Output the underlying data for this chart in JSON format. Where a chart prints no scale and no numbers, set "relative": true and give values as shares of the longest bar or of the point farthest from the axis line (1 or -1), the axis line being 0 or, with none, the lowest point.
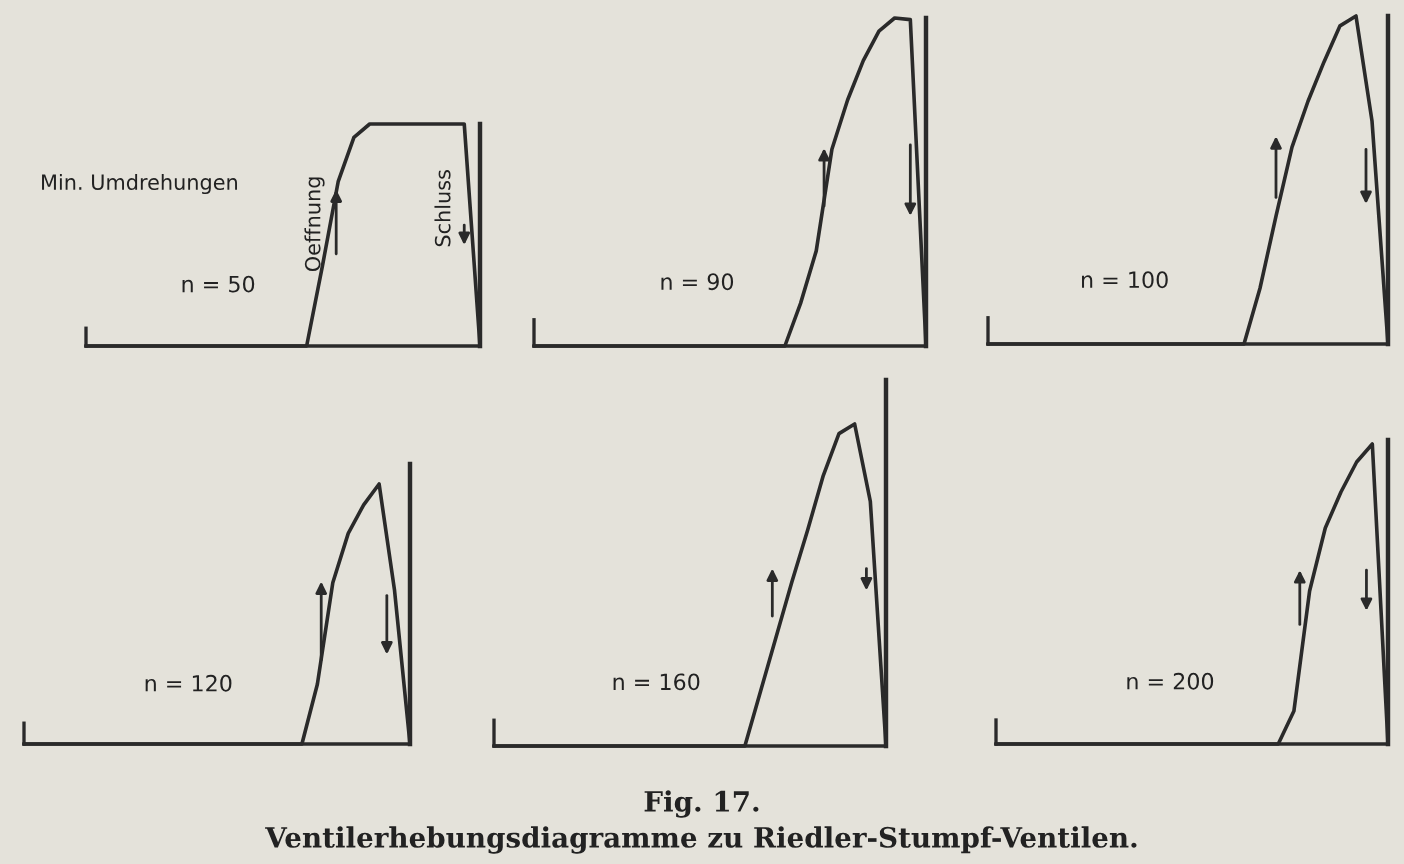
{
  "chart_data": [
    {
      "type": "line",
      "relative": true,
      "title": "n = 50",
      "categories": [
        null,
        null,
        null,
        null,
        null,
        null,
        null,
        null,
        null,
        null,
        null,
        null,
        null,
        null,
        null,
        null,
        null,
        null,
        null,
        null,
        null,
        null,
        null,
        null,
        null,
        null
      ],
      "series": [
        {
          "color": "#2a2a2a",
          "values": [
            0,
            0,
            0,
            0,
            0,
            0,
            0,
            0,
            0,
            0,
            0,
            0,
            0,
            0,
            0,
            0.36,
            0.74,
            0.94,
            1,
            1,
            1,
            1,
            1,
            1,
            1,
            0
          ]
        }
      ],
      "annotations": [
        "Min. Umdrehungen",
        "Oeffnung",
        "Schluss",
        "Fig. 17.",
        "Ventilerhebungsdiagramme zu Riedler-Stumpf-Ventilen."
      ]
    },
    {
      "type": "line",
      "relative": true,
      "title": "n = 90",
      "categories": [
        null,
        null,
        null,
        null,
        null,
        null,
        null,
        null,
        null,
        null,
        null,
        null,
        null,
        null,
        null,
        null,
        null,
        null,
        null,
        null,
        null,
        null,
        null,
        null,
        null,
        null
      ],
      "series": [
        {
          "color": "#2a2a2a",
          "values": [
            0,
            0,
            0,
            0,
            0,
            0,
            0,
            0,
            0,
            0,
            0,
            0,
            0,
            0,
            0,
            0,
            0,
            0.13,
            0.29,
            0.6,
            0.75,
            0.87,
            0.96,
            1,
            0.995,
            0
          ]
        }
      ]
    },
    {
      "type": "line",
      "relative": true,
      "title": "n = 100",
      "categories": [
        null,
        null,
        null,
        null,
        null,
        null,
        null,
        null,
        null,
        null,
        null,
        null,
        null,
        null,
        null,
        null,
        null,
        null,
        null,
        null,
        null,
        null,
        null,
        null,
        null,
        null
      ],
      "series": [
        {
          "color": "#2a2a2a",
          "values": [
            0,
            0,
            0,
            0,
            0,
            0,
            0,
            0,
            0,
            0,
            0,
            0,
            0,
            0,
            0,
            0,
            0,
            0.17,
            0.39,
            0.6,
            0.74,
            0.86,
            0.97,
            1,
            0.68,
            0
          ]
        }
      ]
    },
    {
      "type": "line",
      "relative": true,
      "title": "n = 120",
      "categories": [
        null,
        null,
        null,
        null,
        null,
        null,
        null,
        null,
        null,
        null,
        null,
        null,
        null,
        null,
        null,
        null,
        null,
        null,
        null,
        null,
        null,
        null,
        null,
        null,
        null,
        null
      ],
      "series": [
        {
          "color": "#2a2a2a",
          "values": [
            0,
            0,
            0,
            0,
            0,
            0,
            0,
            0,
            0,
            0,
            0,
            0,
            0,
            0,
            0,
            0,
            0,
            0,
            0,
            0.23,
            0.62,
            0.81,
            0.92,
            1,
            0.59,
            0
          ]
        }
      ]
    },
    {
      "type": "line",
      "relative": true,
      "title": "n = 160",
      "categories": [
        null,
        null,
        null,
        null,
        null,
        null,
        null,
        null,
        null,
        null,
        null,
        null,
        null,
        null,
        null,
        null,
        null,
        null,
        null,
        null,
        null,
        null,
        null,
        null,
        null,
        null
      ],
      "series": [
        {
          "color": "#2a2a2a",
          "values": [
            0,
            0,
            0,
            0,
            0,
            0,
            0,
            0,
            0,
            0,
            0,
            0,
            0,
            0,
            0,
            0,
            0,
            0.17,
            0.34,
            0.51,
            0.67,
            0.84,
            0.97,
            1,
            0.76,
            0
          ]
        }
      ]
    },
    {
      "type": "line",
      "relative": true,
      "title": "n = 200",
      "categories": [
        null,
        null,
        null,
        null,
        null,
        null,
        null,
        null,
        null,
        null,
        null,
        null,
        null,
        null,
        null,
        null,
        null,
        null,
        null,
        null,
        null,
        null,
        null,
        null,
        null,
        null
      ],
      "series": [
        {
          "color": "#2a2a2a",
          "values": [
            0,
            0,
            0,
            0,
            0,
            0,
            0,
            0,
            0,
            0,
            0,
            0,
            0,
            0,
            0,
            0,
            0,
            0,
            0,
            0.11,
            0.51,
            0.72,
            0.84,
            0.94,
            1,
            0
          ]
        }
      ]
    }
  ]
}
